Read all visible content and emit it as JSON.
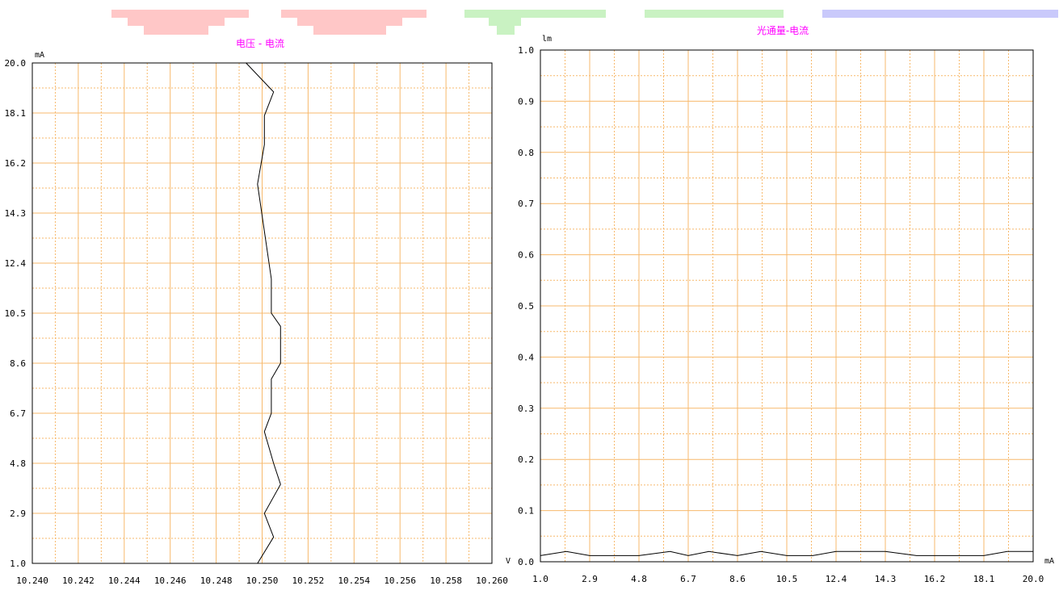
{
  "colors": {
    "grid": "#f7b96c",
    "title": "#ff00ff",
    "line": "#000000",
    "background": "#ffffff",
    "decor_red": "#ffc7c7",
    "decor_green": "#c9f2c2",
    "decor_blue": "#c9c9fb"
  },
  "chart_data": [
    {
      "type": "line",
      "title": "电压 - 电流",
      "y_unit": "mA",
      "x_unit": "V",
      "xlim": [
        10.24,
        10.26
      ],
      "ylim": [
        1.0,
        20.0
      ],
      "x_ticks": [
        "10.240",
        "10.242",
        "10.244",
        "10.246",
        "10.248",
        "10.250",
        "10.252",
        "10.254",
        "10.256",
        "10.258",
        "10.260"
      ],
      "y_ticks": [
        "1.0",
        "2.9",
        "4.8",
        "6.7",
        "8.6",
        "10.5",
        "12.4",
        "14.3",
        "16.2",
        "18.1",
        "20.0"
      ],
      "grid": true,
      "series": [
        {
          "x": [
            10.2498,
            10.2505,
            10.2501,
            10.2508,
            10.2505,
            10.2501,
            10.2504,
            10.2504,
            10.2508,
            10.2508,
            10.2504,
            10.2504,
            10.2498,
            10.2501,
            10.2501,
            10.2505,
            10.2493
          ],
          "y": [
            1.0,
            2.0,
            2.9,
            4.0,
            4.8,
            6.0,
            6.7,
            8.0,
            8.6,
            10.0,
            10.5,
            11.8,
            15.4,
            16.9,
            18.0,
            18.9,
            20.0
          ]
        }
      ]
    },
    {
      "type": "line",
      "title": "光通量-电流",
      "y_unit": "lm",
      "x_unit": "mA",
      "xlim": [
        1.0,
        20.0
      ],
      "ylim": [
        0.0,
        1.0
      ],
      "x_ticks": [
        "1.0",
        "2.9",
        "4.8",
        "6.7",
        "8.6",
        "10.5",
        "12.4",
        "14.3",
        "16.2",
        "18.1",
        "20.0"
      ],
      "y_ticks": [
        "0.0",
        "0.1",
        "0.2",
        "0.3",
        "0.4",
        "0.5",
        "0.6",
        "0.7",
        "0.8",
        "0.9",
        "1.0"
      ],
      "grid": true,
      "series": [
        {
          "x": [
            1.0,
            2.0,
            2.9,
            4.0,
            4.8,
            6.0,
            6.7,
            7.5,
            8.6,
            9.5,
            10.5,
            11.5,
            12.4,
            13.2,
            14.3,
            15.5,
            16.2,
            17.2,
            18.1,
            19.0,
            20.0
          ],
          "y": [
            0.012,
            0.02,
            0.012,
            0.012,
            0.012,
            0.02,
            0.012,
            0.02,
            0.012,
            0.02,
            0.012,
            0.012,
            0.02,
            0.02,
            0.02,
            0.012,
            0.012,
            0.012,
            0.012,
            0.02,
            0.02
          ]
        }
      ]
    }
  ]
}
